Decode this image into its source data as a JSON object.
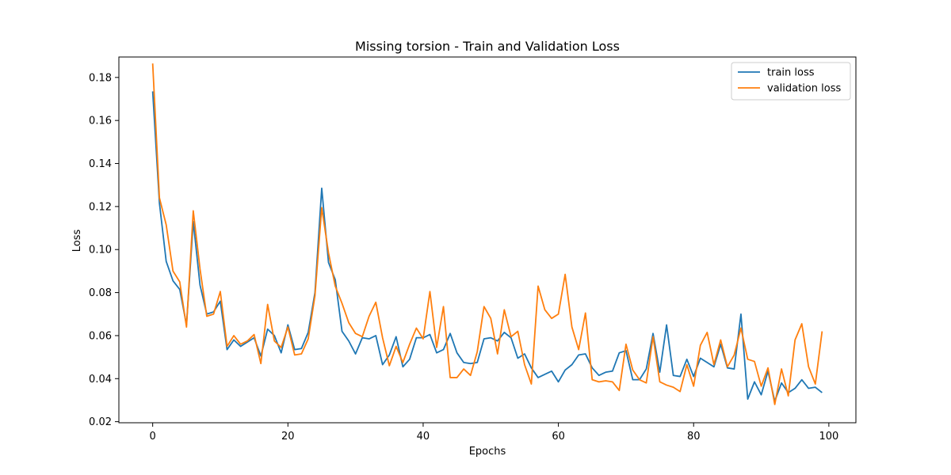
{
  "chart_data": {
    "type": "line",
    "title": "Missing torsion - Train and Validation Loss",
    "xlabel": "Epochs",
    "ylabel": "Loss",
    "xlim": [
      -5,
      104
    ],
    "ylim": [
      0.0195,
      0.1895
    ],
    "xticks": [
      0,
      20,
      40,
      60,
      80,
      100
    ],
    "xtick_labels": [
      "0",
      "20",
      "40",
      "60",
      "80",
      "100"
    ],
    "yticks": [
      0.02,
      0.04,
      0.06,
      0.08,
      0.1,
      0.12,
      0.14,
      0.16,
      0.18
    ],
    "ytick_labels": [
      "0.02",
      "0.04",
      "0.06",
      "0.08",
      "0.10",
      "0.12",
      "0.14",
      "0.16",
      "0.18"
    ],
    "grid": false,
    "legend_position": "top-right",
    "series": [
      {
        "name": "train loss",
        "color": "#1f77b4",
        "values": [
          0.1735,
          0.1215,
          0.0945,
          0.0855,
          0.0815,
          0.065,
          0.113,
          0.0835,
          0.07,
          0.071,
          0.076,
          0.0535,
          0.058,
          0.055,
          0.057,
          0.059,
          0.0505,
          0.063,
          0.06,
          0.052,
          0.065,
          0.0535,
          0.054,
          0.0615,
          0.08,
          0.1285,
          0.094,
          0.086,
          0.062,
          0.0575,
          0.0515,
          0.059,
          0.0585,
          0.06,
          0.0465,
          0.051,
          0.0595,
          0.0455,
          0.049,
          0.059,
          0.059,
          0.0605,
          0.052,
          0.0535,
          0.061,
          0.052,
          0.0475,
          0.047,
          0.0475,
          0.0585,
          0.059,
          0.0575,
          0.0615,
          0.059,
          0.0495,
          0.0515,
          0.045,
          0.0405,
          0.042,
          0.0435,
          0.0385,
          0.044,
          0.0465,
          0.051,
          0.0515,
          0.045,
          0.0415,
          0.043,
          0.0435,
          0.052,
          0.053,
          0.0395,
          0.0395,
          0.0445,
          0.061,
          0.043,
          0.065,
          0.0415,
          0.041,
          0.049,
          0.041,
          0.0495,
          0.0475,
          0.0455,
          0.056,
          0.045,
          0.0445,
          0.07,
          0.0305,
          0.0385,
          0.0325,
          0.0435,
          0.0295,
          0.038,
          0.0335,
          0.0355,
          0.0395,
          0.0355,
          0.036,
          0.0335
        ]
      },
      {
        "name": "validation loss",
        "color": "#ff7f0e",
        "values": [
          0.1865,
          0.124,
          0.1115,
          0.09,
          0.085,
          0.064,
          0.118,
          0.091,
          0.069,
          0.07,
          0.0805,
          0.055,
          0.06,
          0.056,
          0.0575,
          0.0605,
          0.047,
          0.0745,
          0.0575,
          0.0545,
          0.064,
          0.051,
          0.0515,
          0.0585,
          0.0785,
          0.1195,
          0.0985,
          0.083,
          0.075,
          0.066,
          0.061,
          0.0595,
          0.069,
          0.0755,
          0.059,
          0.046,
          0.055,
          0.0475,
          0.056,
          0.0635,
          0.0585,
          0.0805,
          0.0545,
          0.0735,
          0.0405,
          0.0405,
          0.0445,
          0.0415,
          0.0525,
          0.0735,
          0.068,
          0.0515,
          0.072,
          0.0595,
          0.062,
          0.0465,
          0.0375,
          0.083,
          0.072,
          0.068,
          0.07,
          0.0885,
          0.064,
          0.0535,
          0.0705,
          0.0395,
          0.0385,
          0.039,
          0.0385,
          0.0345,
          0.056,
          0.044,
          0.0395,
          0.038,
          0.0595,
          0.0385,
          0.037,
          0.036,
          0.034,
          0.0465,
          0.0365,
          0.0555,
          0.0615,
          0.0465,
          0.058,
          0.0455,
          0.051,
          0.0635,
          0.049,
          0.048,
          0.0365,
          0.045,
          0.028,
          0.0445,
          0.032,
          0.058,
          0.0655,
          0.0455,
          0.0375,
          0.062
        ]
      }
    ]
  }
}
